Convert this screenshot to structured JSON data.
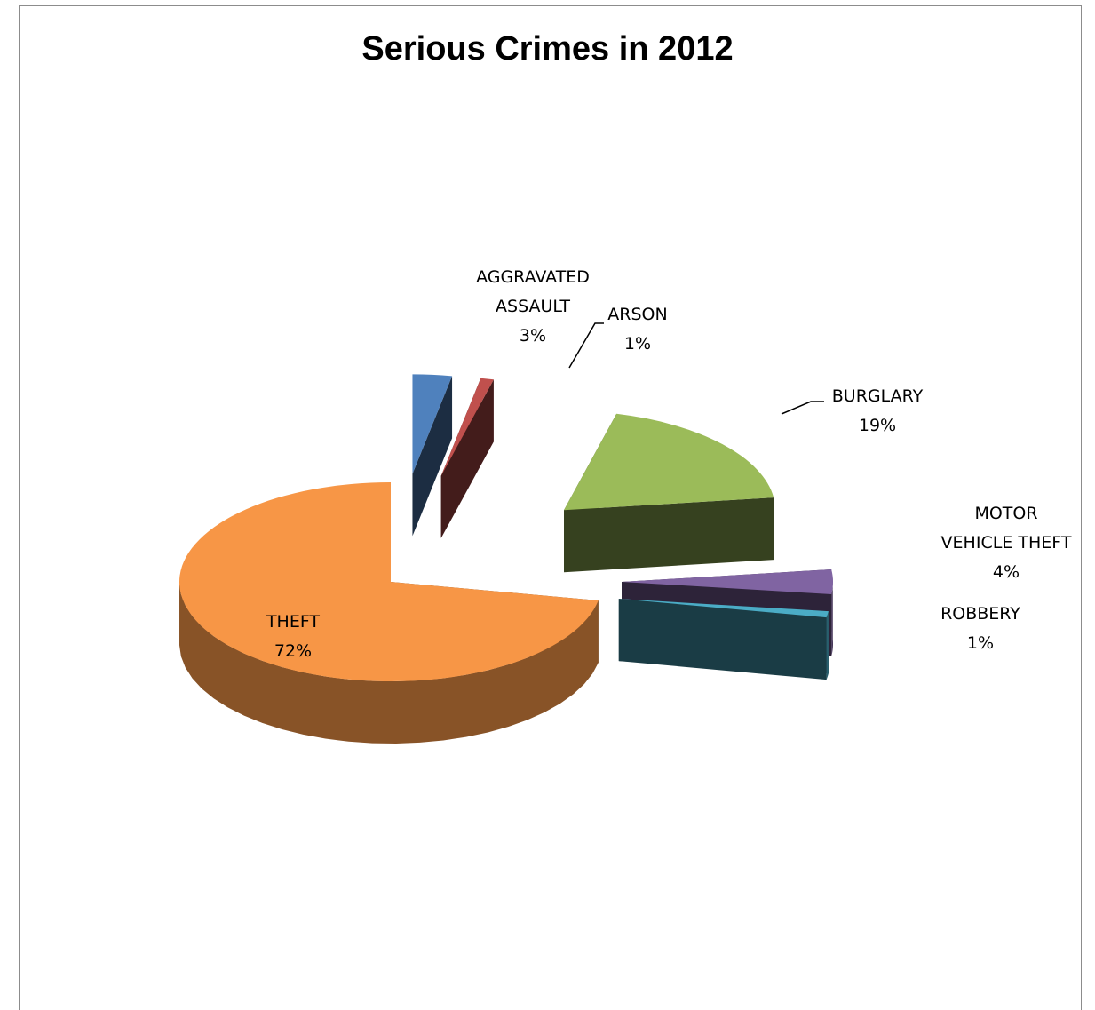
{
  "chart_data": {
    "type": "pie",
    "style": "3d-exploded",
    "title": "Serious Crimes in 2012",
    "slices": [
      {
        "label_lines": [
          "AGGRAVATED",
          "ASSAULT"
        ],
        "pct_label": "3%",
        "value": 3,
        "color": "#4f81bd"
      },
      {
        "label_lines": [
          "ARSON"
        ],
        "pct_label": "1%",
        "value": 1,
        "color": "#c0504d"
      },
      {
        "label_lines": [
          "BURGLARY"
        ],
        "pct_label": "19%",
        "value": 19,
        "color": "#9bbb59"
      },
      {
        "label_lines": [
          "MOTOR",
          "VEHICLE THEFT"
        ],
        "pct_label": "4%",
        "value": 4,
        "color": "#8064a2"
      },
      {
        "label_lines": [
          "ROBBERY"
        ],
        "pct_label": "1%",
        "value": 1,
        "color": "#4bacc6"
      },
      {
        "label_lines": [
          "THEFT"
        ],
        "pct_label": "72%",
        "value": 72,
        "color": "#f79646"
      }
    ],
    "legend": "none",
    "data_labels": "category name and percentage"
  }
}
